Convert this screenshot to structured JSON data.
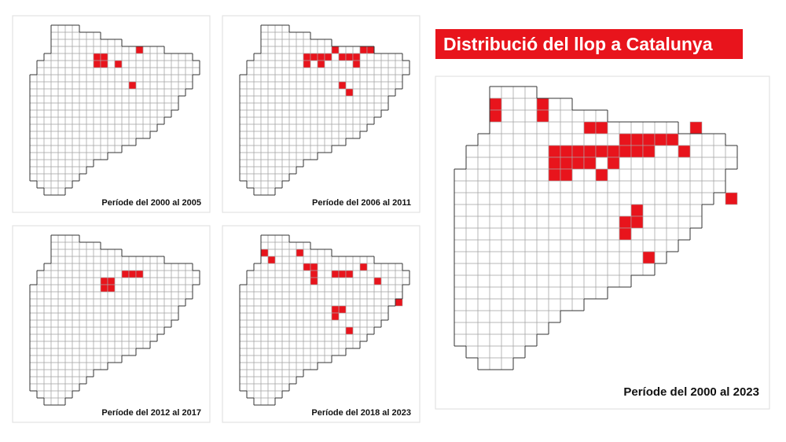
{
  "title": "Distribució del llop a Catalunya",
  "panels": [
    {
      "label": "Període del 2000 al 2005"
    },
    {
      "label": "Període del 2006 al 2011"
    },
    {
      "label": "Període del 2012 al 2017"
    },
    {
      "label": "Període del 2018 al 2023"
    }
  ],
  "main_panel": {
    "label": "Període del 2000 al 2023"
  }
}
